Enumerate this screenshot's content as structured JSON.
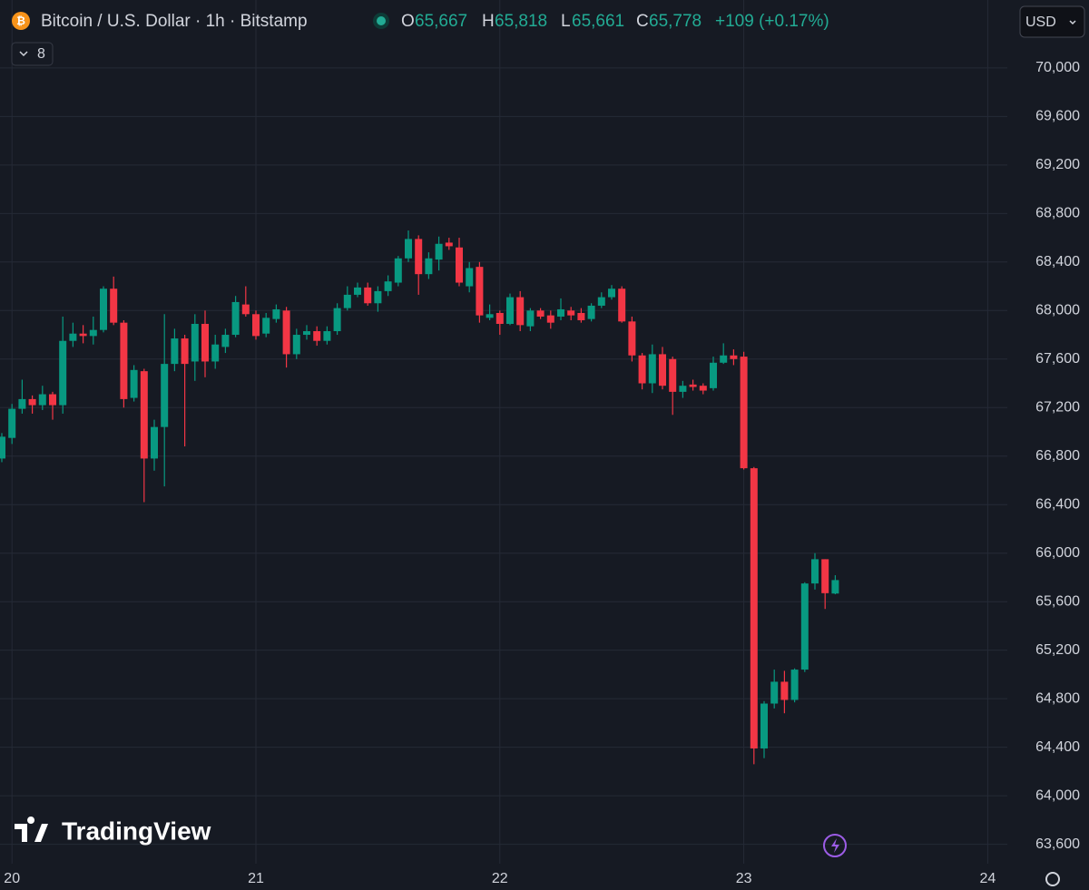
{
  "header": {
    "symbol": "Bitcoin / U.S. Dollar · 1h · Bitstamp",
    "open_label": "O",
    "open": "65,667",
    "high_label": "H",
    "high": "65,818",
    "low_label": "L",
    "low": "65,661",
    "close_label": "C",
    "close": "65,778",
    "change": "+109 (+0.17%)",
    "indicators": "8",
    "currency": "USD",
    "logo": "TradingView"
  },
  "chart_data": {
    "type": "candlestick",
    "categories": [
      null,
      "20",
      null,
      null,
      null,
      null,
      null,
      null,
      null,
      null,
      null,
      null,
      null,
      null,
      null,
      null,
      null,
      null,
      null,
      null,
      null,
      null,
      null,
      null,
      null,
      "21",
      null,
      null,
      null,
      null,
      null,
      null,
      null,
      null,
      null,
      null,
      null,
      null,
      null,
      null,
      null,
      null,
      null,
      null,
      null,
      null,
      null,
      null,
      null,
      "22",
      null,
      null,
      null,
      null,
      null,
      null,
      null,
      null,
      null,
      null,
      null,
      null,
      null,
      null,
      null,
      null,
      null,
      null,
      null,
      null,
      null,
      null,
      null,
      "23",
      null,
      null,
      null,
      null,
      null,
      null,
      null,
      null,
      null,
      null,
      null,
      null,
      null,
      null,
      null,
      null,
      null,
      null,
      null,
      null,
      null,
      null,
      null,
      "24",
      null,
      null
    ],
    "open": [
      66780,
      66950,
      67190,
      67270,
      67220,
      67310,
      67220,
      67750,
      67810,
      67790,
      67840,
      68180,
      67900,
      67280,
      67500,
      66780,
      67040,
      67560,
      67770,
      67580,
      67890,
      67580,
      67700,
      67800,
      68050,
      67970,
      67810,
      67930,
      68000,
      67640,
      67800,
      67830,
      67750,
      67830,
      68020,
      68130,
      68190,
      68060,
      68160,
      68230,
      68430,
      68590,
      68300,
      68420,
      68560,
      68520,
      68200,
      68360,
      67940,
      67980,
      67890,
      68110,
      67870,
      68000,
      67960,
      67950,
      68000,
      67980,
      67930,
      68040,
      68110,
      68180,
      67910,
      67630,
      67400,
      67640,
      67600,
      67330,
      67390,
      67380,
      67360,
      67570,
      67630,
      67620,
      66700,
      64390,
      64760,
      64940,
      64790,
      65040,
      65750,
      65950,
      65667,
      null,
      null,
      null,
      null,
      null,
      null,
      null,
      null,
      null,
      null,
      null,
      null,
      null,
      null,
      null,
      null,
      null
    ],
    "high": [
      66990,
      67230,
      67430,
      67300,
      67380,
      67330,
      67950,
      67900,
      67880,
      67950,
      68200,
      68280,
      67920,
      67550,
      67520,
      67100,
      67970,
      67850,
      67800,
      67970,
      68000,
      67800,
      67850,
      68120,
      68200,
      68000,
      67980,
      68050,
      68030,
      67850,
      67880,
      67870,
      67870,
      68060,
      68200,
      68230,
      68230,
      68200,
      68290,
      68450,
      68660,
      68620,
      68480,
      68610,
      68600,
      68600,
      68400,
      68400,
      68050,
      68000,
      68140,
      68160,
      68020,
      68020,
      68000,
      68100,
      68030,
      68020,
      68060,
      68150,
      68210,
      68200,
      67950,
      67650,
      67720,
      67700,
      67620,
      67420,
      67430,
      67400,
      67620,
      67730,
      67680,
      67660,
      66710,
      64780,
      65040,
      65030,
      65050,
      65760,
      66000,
      65950,
      65818,
      null,
      null,
      null,
      null,
      null,
      null,
      null,
      null,
      null,
      null,
      null,
      null,
      null,
      null,
      null,
      null,
      null
    ],
    "low": [
      66750,
      66900,
      67150,
      67150,
      67180,
      67100,
      67150,
      67700,
      67730,
      67720,
      67820,
      67880,
      67200,
      67250,
      66420,
      66680,
      66550,
      67500,
      66880,
      67420,
      67450,
      67520,
      67650,
      67780,
      67950,
      67760,
      67780,
      67900,
      67530,
      67600,
      67760,
      67710,
      67720,
      67800,
      68000,
      68110,
      68040,
      67990,
      68120,
      68200,
      68400,
      68130,
      68260,
      68330,
      68500,
      68200,
      68150,
      67900,
      67920,
      67800,
      67880,
      67830,
      67830,
      67930,
      67850,
      67920,
      67920,
      67900,
      67910,
      68020,
      68090,
      67900,
      67580,
      67350,
      67320,
      67350,
      67140,
      67280,
      67340,
      67310,
      67340,
      67560,
      67550,
      66690,
      64260,
      64310,
      64720,
      64680,
      64770,
      65020,
      65700,
      65540,
      65661,
      null,
      null,
      null,
      null,
      null,
      null,
      null,
      null,
      null,
      null,
      null,
      null,
      null,
      null,
      null,
      null,
      null
    ],
    "close": [
      66960,
      67190,
      67270,
      67220,
      67310,
      67220,
      67750,
      67810,
      67790,
      67840,
      68180,
      67900,
      67270,
      67510,
      66780,
      67040,
      67560,
      67770,
      67560,
      67890,
      67580,
      67720,
      67800,
      68070,
      67970,
      67790,
      67940,
      68010,
      67640,
      67800,
      67830,
      67750,
      67830,
      68020,
      68130,
      68190,
      68060,
      68160,
      68240,
      68430,
      68590,
      68300,
      68430,
      68550,
      68530,
      68230,
      68350,
      67960,
      67970,
      67890,
      68110,
      67880,
      68000,
      67950,
      67900,
      68010,
      67960,
      67920,
      68040,
      68110,
      68180,
      67910,
      67630,
      67400,
      67640,
      67380,
      67330,
      67380,
      67370,
      67340,
      67570,
      67630,
      67600,
      66700,
      64390,
      64760,
      64940,
      64790,
      65040,
      65750,
      65950,
      65670,
      65778,
      null,
      null,
      null,
      null,
      null,
      null,
      null,
      null,
      null,
      null,
      null,
      null,
      null,
      null,
      null,
      null,
      null
    ],
    "up_color": "#089981",
    "down_color": "#f23645",
    "ylim": [
      63440,
      70560
    ],
    "yticks": [
      {
        "value": 63600,
        "label": "63,600"
      },
      {
        "value": 64000,
        "label": "64,000"
      },
      {
        "value": 64400,
        "label": "64,400"
      },
      {
        "value": 64800,
        "label": "64,800"
      },
      {
        "value": 65200,
        "label": "65,200"
      },
      {
        "value": 65600,
        "label": "65,600"
      },
      {
        "value": 66000,
        "label": "66,000"
      },
      {
        "value": 66400,
        "label": "66,400"
      },
      {
        "value": 66800,
        "label": "66,800"
      },
      {
        "value": 67200,
        "label": "67,200"
      },
      {
        "value": 67600,
        "label": "67,600"
      },
      {
        "value": 68000,
        "label": "68,000"
      },
      {
        "value": 68400,
        "label": "68,400"
      },
      {
        "value": 68800,
        "label": "68,800"
      },
      {
        "value": 69200,
        "label": "69,200"
      },
      {
        "value": 69600,
        "label": "69,600"
      },
      {
        "value": 70000,
        "label": "70,000"
      }
    ],
    "grid": true
  }
}
